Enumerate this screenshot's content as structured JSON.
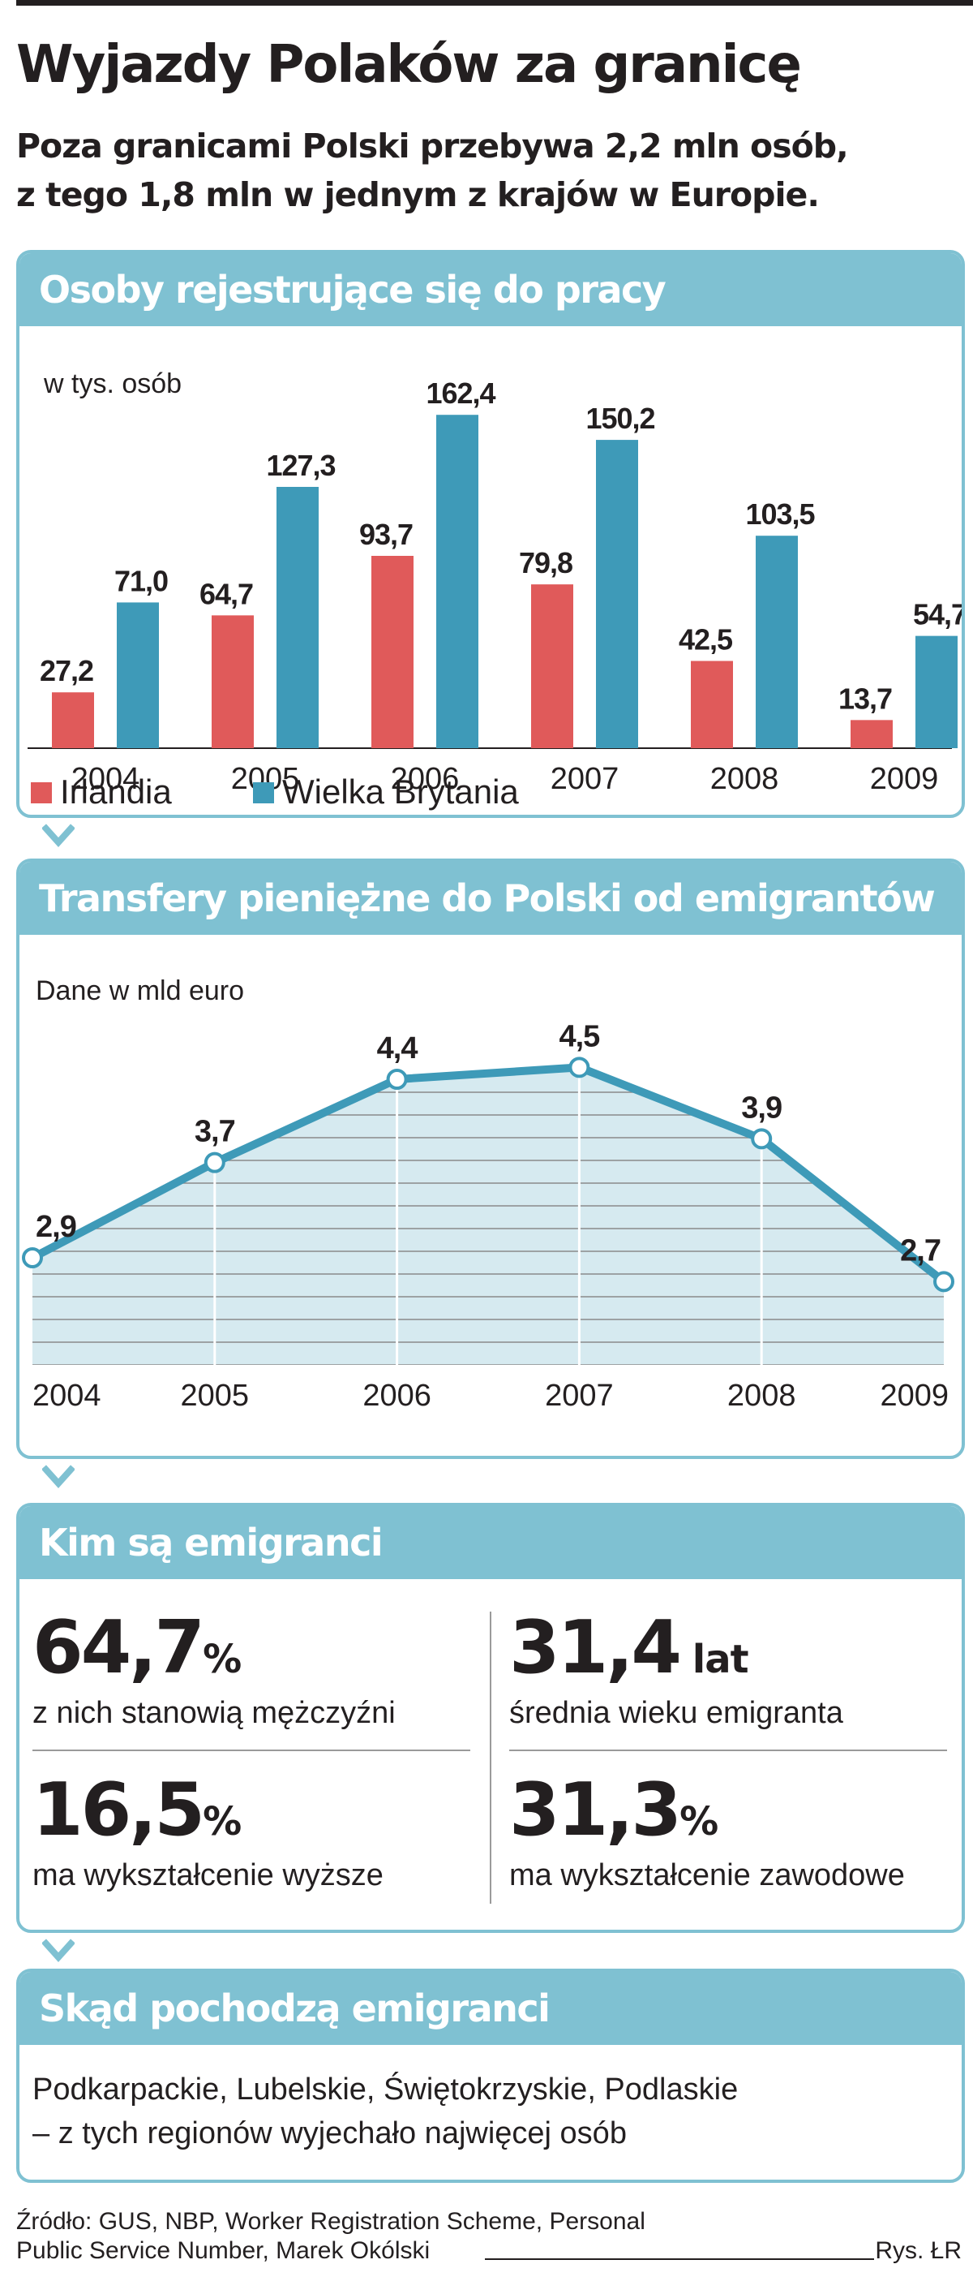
{
  "header": {
    "title": "Wyjazdy Polaków za granicę",
    "subtitle_line1": "Poza granicami Polski przebywa 2,2 mln osób,",
    "subtitle_line2": "z tego 1,8 mln w jednym z krajów w Europie."
  },
  "colors": {
    "accent": "#7fc1d2",
    "irlandia": "#e05a5a",
    "uk": "#3e9ab8",
    "area": "#d6eaf0",
    "line": "#3e9ab8"
  },
  "chart_data": [
    {
      "type": "bar",
      "title": "Osoby rejestrujące się do pracy",
      "ylabel": "w tys.  osób",
      "categories": [
        "2004",
        "2005",
        "2006",
        "2007",
        "2008",
        "2009"
      ],
      "series": [
        {
          "name": "Irlandia",
          "values": [
            27.2,
            64.7,
            93.7,
            79.8,
            42.5,
            13.7
          ],
          "labels": [
            "27,2",
            "64,7",
            "93,7",
            "79,8",
            "42,5",
            "13,7"
          ]
        },
        {
          "name": "Wielka Brytania",
          "values": [
            71.0,
            127.3,
            162.4,
            150.2,
            103.5,
            54.7
          ],
          "labels": [
            "71,0",
            "127,3",
            "162,4",
            "150,2",
            "103,5",
            "54,7"
          ]
        }
      ],
      "ylim": [
        0,
        170
      ],
      "legend": "bottom-left",
      "grid": false
    },
    {
      "type": "area",
      "title": "Transfery pieniężne do Polski od emigrantów",
      "ylabel": "Dane w mld euro",
      "x": [
        "2004",
        "2005",
        "2006",
        "2007",
        "2008",
        "2009"
      ],
      "values": [
        2.9,
        3.7,
        4.4,
        4.5,
        3.9,
        2.7
      ],
      "labels": [
        "2,9",
        "3,7",
        "4,4",
        "4,5",
        "3,9",
        "2,7"
      ],
      "ylim": [
        2.0,
        5.0
      ],
      "grid": true
    }
  ],
  "emigrants": {
    "title": "Kim są emigranci",
    "stats": [
      {
        "value": "64,7",
        "unit": "%",
        "desc": "z nich stanowią mężczyźni"
      },
      {
        "value": "31,4",
        "unit": " lat",
        "desc": "średnia wieku emigranta"
      },
      {
        "value": "16,5",
        "unit": "%",
        "desc": "ma wykształcenie wyższe"
      },
      {
        "value": "31,3",
        "unit": "%",
        "desc": "ma wykształcenie zawodowe"
      }
    ]
  },
  "origin": {
    "title": "Skąd pochodzą emigranci",
    "line1": "Podkarpackie, Lubelskie, Świętokrzyskie, Podlaskie",
    "line2": "– z tych regionów wyjechało najwięcej osób"
  },
  "footer": {
    "source_line1": "Źródło: GUS, NBP, Worker Registration Scheme, Personal",
    "source_line2": "Public Service Number, Marek Okólski",
    "credit": "Rys. ŁR"
  }
}
